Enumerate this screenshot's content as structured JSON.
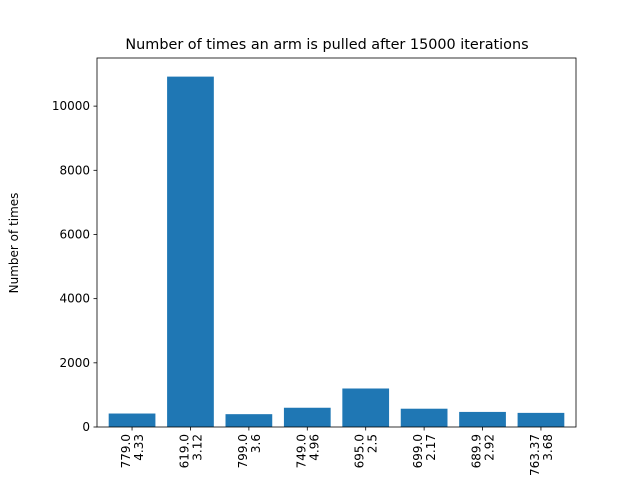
{
  "chart_data": {
    "type": "bar",
    "title": "Number of times an arm is pulled after 15000 iterations",
    "xlabel": "",
    "ylabel": "Number of times",
    "categories": [
      [
        "779.0",
        "4.33"
      ],
      [
        "619.0",
        "3.12"
      ],
      [
        "799.0",
        "3.6"
      ],
      [
        "749.0",
        "4.96"
      ],
      [
        "695.0",
        "2.5"
      ],
      [
        "699.0",
        "2.17"
      ],
      [
        "689.9",
        "2.92"
      ],
      [
        "763.37",
        "3.68"
      ]
    ],
    "values": [
      420,
      10920,
      400,
      600,
      1200,
      570,
      470,
      440
    ],
    "ylim": [
      0,
      11500
    ],
    "yticks": [
      0,
      2000,
      4000,
      6000,
      8000,
      10000
    ],
    "grid": false,
    "bar_color": "#1f77b4"
  }
}
